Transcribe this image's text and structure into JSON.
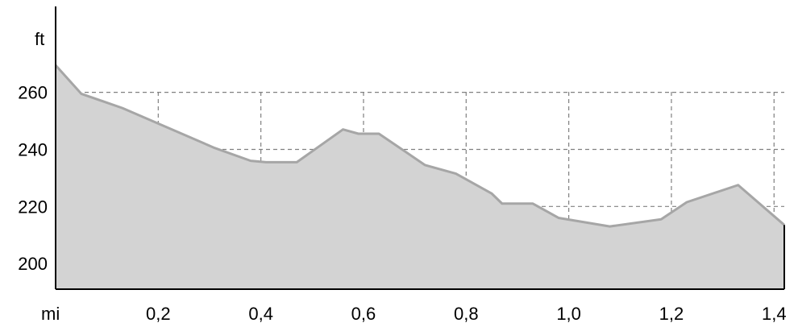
{
  "chart_data": {
    "type": "area",
    "title": "",
    "xlabel": "mi",
    "ylabel": "ft",
    "xlim": [
      0,
      1.42
    ],
    "ylim": [
      191,
      269.5
    ],
    "grid": true,
    "x_ticks": [
      0.2,
      0.4,
      0.6,
      0.8,
      1.0,
      1.2,
      1.4
    ],
    "x_tick_labels": [
      "0,2",
      "0,4",
      "0,6",
      "0,8",
      "1,0",
      "1,2",
      "1,4"
    ],
    "y_ticks": [
      200,
      220,
      240,
      260
    ],
    "y_tick_labels": [
      "200",
      "220",
      "240",
      "260"
    ],
    "series": [
      {
        "x": [
          0.0,
          0.05,
          0.13,
          0.31,
          0.38,
          0.41,
          0.47,
          0.56,
          0.59,
          0.63,
          0.72,
          0.78,
          0.85,
          0.87,
          0.93,
          0.98,
          1.08,
          1.18,
          1.23,
          1.33,
          1.42
        ],
        "values": [
          269.5,
          259.5,
          254.5,
          240.5,
          236,
          235.5,
          235.5,
          247,
          245.5,
          245.5,
          234.5,
          231.5,
          224.5,
          221,
          221,
          216,
          213,
          215.5,
          221.5,
          227.5,
          213.5
        ]
      }
    ],
    "colors": {
      "fill": "#d3d3d3",
      "line": "#a6a6a6",
      "grid": "#808080",
      "axis": "#000000"
    }
  }
}
